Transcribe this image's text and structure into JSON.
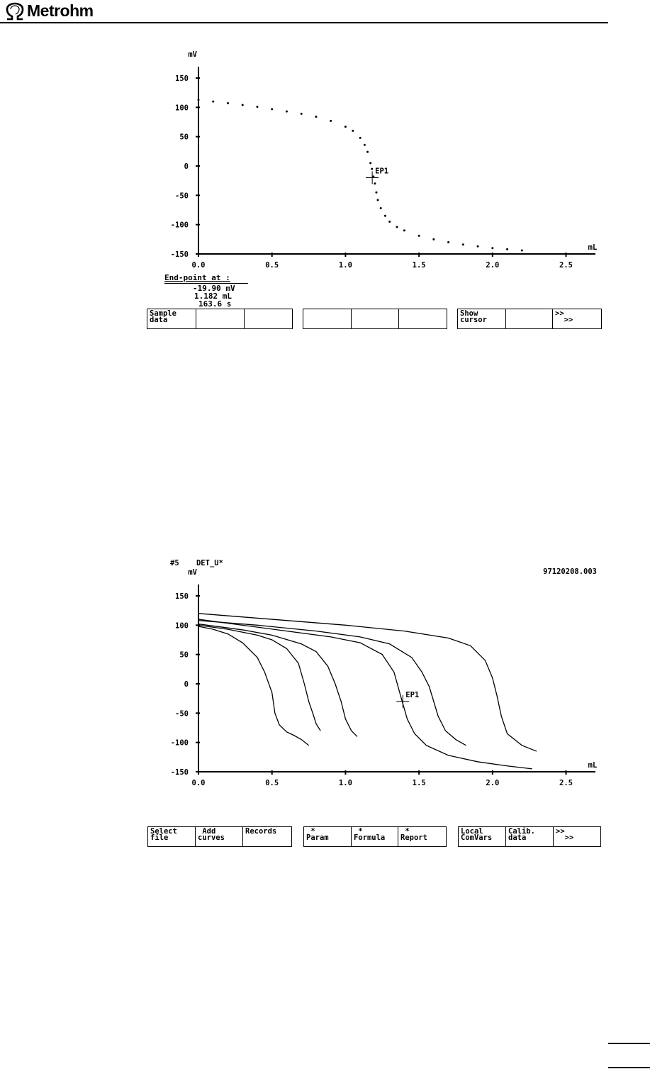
{
  "header": {
    "brand": "Metrohm"
  },
  "plot1": {
    "y_unit": "mV",
    "x_unit": "mL",
    "y_ticks": [
      "150",
      "100",
      "50",
      "0",
      "-50",
      "-100",
      "-150"
    ],
    "x_ticks": [
      "0.0",
      "0.5",
      "1.0",
      "1.5",
      "2.0",
      "2.5"
    ],
    "endpoint_label": "EP1"
  },
  "endpoint": {
    "title": "End-point at :",
    "lines": [
      "-19.90 mV",
      "1.182 mL",
      "163.6 s"
    ]
  },
  "softkeys1": {
    "groups": [
      [
        "Sample\ndata",
        "",
        ""
      ],
      [
        "",
        "",
        ""
      ],
      [
        "Show\ncursor",
        "",
        ">>\n  >>"
      ]
    ]
  },
  "plot2": {
    "sample_no": "#5",
    "method": "DET_U*",
    "file_id": "97120208.003",
    "y_unit": "mV",
    "x_unit": "mL",
    "y_ticks": [
      "150",
      "100",
      "50",
      "0",
      "-50",
      "-100",
      "-150"
    ],
    "x_ticks": [
      "0.0",
      "0.5",
      "1.0",
      "1.5",
      "2.0",
      "2.5"
    ],
    "endpoint_label": "EP1"
  },
  "softkeys2": {
    "groups": [
      [
        "Select\nfile",
        " Add\ncurves",
        "Records"
      ],
      [
        " *\nParam",
        " *\nFormula",
        " *\nReport"
      ],
      [
        "Local\nComVars",
        "Calib.\ndata",
        ">>\n  >>"
      ]
    ]
  },
  "chart_data": [
    {
      "type": "scatter",
      "title": "",
      "xlabel": "mL",
      "ylabel": "mV",
      "xlim": [
        0,
        2.7
      ],
      "ylim": [
        -150,
        150
      ],
      "series": [
        {
          "x": [
            0.0,
            0.1,
            0.2,
            0.3,
            0.4,
            0.5,
            0.6,
            0.7,
            0.8,
            0.9,
            1.0,
            1.05,
            1.1,
            1.13,
            1.15,
            1.17,
            1.18,
            1.19,
            1.2,
            1.21,
            1.22,
            1.24,
            1.27,
            1.3,
            1.35,
            1.4,
            1.5,
            1.6,
            1.7,
            1.8,
            1.9,
            2.0,
            2.1,
            2.2
          ],
          "y": [
            113,
            110,
            107,
            104,
            101,
            97,
            93,
            89,
            84,
            77,
            67,
            60,
            48,
            36,
            24,
            5,
            -5,
            -18,
            -30,
            -45,
            -58,
            -72,
            -85,
            -95,
            -104,
            -110,
            -119,
            -125,
            -130,
            -134,
            -137,
            -140,
            -142,
            -144
          ]
        }
      ],
      "endpoint": {
        "x": 1.182,
        "y": -19.9,
        "label": "EP1"
      }
    },
    {
      "type": "line",
      "title": "",
      "xlabel": "mL",
      "ylabel": "mV",
      "xlim": [
        0,
        2.7
      ],
      "ylim": [
        -150,
        150
      ],
      "series": [
        {
          "x": [
            0.0,
            0.1,
            0.2,
            0.3,
            0.4,
            0.45,
            0.5,
            0.52,
            0.55,
            0.6,
            0.65,
            0.7,
            0.75
          ],
          "y": [
            98,
            93,
            85,
            70,
            45,
            20,
            -15,
            -50,
            -70,
            -82,
            -88,
            -95,
            -105
          ]
        },
        {
          "x": [
            0.0,
            0.2,
            0.4,
            0.5,
            0.6,
            0.68,
            0.72,
            0.75,
            0.78,
            0.8,
            0.83
          ],
          "y": [
            100,
            93,
            83,
            75,
            60,
            35,
            0,
            -30,
            -52,
            -68,
            -80
          ]
        },
        {
          "x": [
            0.0,
            0.3,
            0.5,
            0.7,
            0.8,
            0.88,
            0.93,
            0.97,
            1.0,
            1.04,
            1.08
          ],
          "y": [
            102,
            92,
            83,
            68,
            55,
            30,
            0,
            -30,
            -60,
            -80,
            -90
          ]
        },
        {
          "x": [
            0.0,
            0.3,
            0.6,
            0.9,
            1.1,
            1.25,
            1.33,
            1.38,
            1.42,
            1.47,
            1.55,
            1.7,
            1.9,
            2.1,
            2.27
          ],
          "y": [
            110,
            100,
            90,
            80,
            70,
            50,
            20,
            -25,
            -60,
            -85,
            -105,
            -122,
            -133,
            -140,
            -145
          ]
        },
        {
          "x": [
            0.0,
            0.4,
            0.8,
            1.1,
            1.3,
            1.45,
            1.52,
            1.57,
            1.6,
            1.63,
            1.68,
            1.75,
            1.82
          ],
          "y": [
            108,
            100,
            90,
            80,
            68,
            45,
            20,
            -5,
            -30,
            -55,
            -80,
            -95,
            -105
          ]
        },
        {
          "x": [
            0.0,
            0.5,
            1.0,
            1.4,
            1.7,
            1.85,
            1.95,
            2.0,
            2.03,
            2.06,
            2.1,
            2.2,
            2.3
          ],
          "y": [
            120,
            110,
            100,
            90,
            78,
            65,
            40,
            10,
            -20,
            -55,
            -85,
            -105,
            -115
          ]
        }
      ],
      "endpoint": {
        "x": 1.39,
        "y": -30,
        "label": "EP1"
      }
    }
  ]
}
